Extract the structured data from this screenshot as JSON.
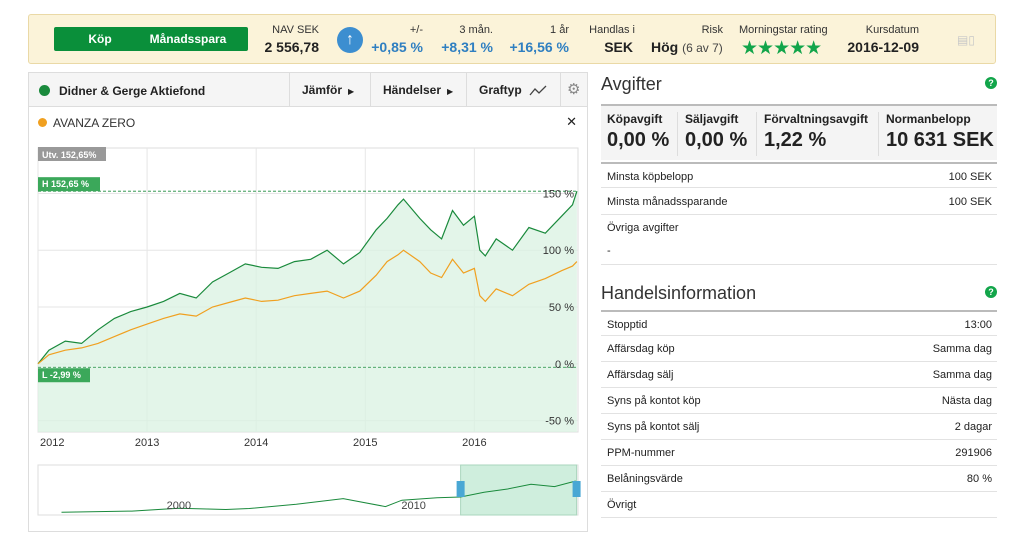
{
  "topbar": {
    "buy_label": "Köp",
    "monthly_label": "Månadsspara",
    "nav_label": "NAV SEK",
    "nav_value": "2 556,78",
    "change_label": "+/-",
    "change_value": "+0,85 %",
    "m3_label": "3 mån.",
    "m3_value": "+8,31 %",
    "y1_label": "1 år",
    "y1_value": "+16,56 %",
    "traded_label": "Handlas i",
    "traded_value": "SEK",
    "risk_label": "Risk",
    "risk_value": "Hög",
    "risk_detail": "(6 av 7)",
    "rating_label": "Morningstar rating",
    "rating_stars": "★★★★★",
    "date_label": "Kursdatum",
    "date_value": "2016-12-09",
    "colors": {
      "accent": "#0a8f3a",
      "blue": "#2f7fc1",
      "background": "#fbf3d9"
    }
  },
  "chart_panel": {
    "fund_name": "Didner & Gerge Aktiefond",
    "compare_label": "Jämför",
    "events_label": "Händelser",
    "charttype_label": "Graftyp",
    "compare_fund": "AVANZA ZERO",
    "utv_label": "Utv. 152,65%",
    "high_label": "H 152,65 %",
    "low_label": "L -2,99 %",
    "colors": {
      "fund": "#1a8a3c",
      "compare": "#f0a020"
    }
  },
  "chart_data": {
    "type": "line",
    "x_ticks": [
      "2012",
      "2013",
      "2014",
      "2015",
      "2016"
    ],
    "y_ticks": [
      "150 %",
      "100 %",
      "50 %",
      "0 %",
      "-50 %"
    ],
    "ylim": [
      -50,
      190
    ],
    "series": [
      {
        "name": "Didner & Gerge Aktiefond",
        "color": "#1a8a3c",
        "x": [
          2012.0,
          2012.1,
          2012.25,
          2012.4,
          2012.55,
          2012.7,
          2012.85,
          2013.0,
          2013.15,
          2013.3,
          2013.45,
          2013.6,
          2013.75,
          2013.9,
          2014.05,
          2014.2,
          2014.35,
          2014.5,
          2014.65,
          2014.8,
          2014.95,
          2015.1,
          2015.2,
          2015.3,
          2015.35,
          2015.5,
          2015.6,
          2015.7,
          2015.8,
          2015.9,
          2016.0,
          2016.05,
          2016.1,
          2016.2,
          2016.35,
          2016.5,
          2016.65,
          2016.8,
          2016.9,
          2016.94
        ],
        "values": [
          0,
          12,
          20,
          18,
          30,
          40,
          46,
          50,
          55,
          62,
          58,
          72,
          80,
          88,
          85,
          84,
          90,
          92,
          100,
          88,
          98,
          118,
          128,
          140,
          145,
          128,
          118,
          110,
          135,
          122,
          130,
          100,
          95,
          110,
          100,
          120,
          115,
          130,
          140,
          152
        ]
      },
      {
        "name": "AVANZA ZERO",
        "color": "#f0a020",
        "x": [
          2012.0,
          2012.1,
          2012.25,
          2012.4,
          2012.55,
          2012.7,
          2012.85,
          2013.0,
          2013.15,
          2013.3,
          2013.45,
          2013.6,
          2013.75,
          2013.9,
          2014.05,
          2014.2,
          2014.35,
          2014.5,
          2014.65,
          2014.8,
          2014.95,
          2015.1,
          2015.2,
          2015.3,
          2015.35,
          2015.5,
          2015.6,
          2015.7,
          2015.8,
          2015.9,
          2016.0,
          2016.05,
          2016.1,
          2016.2,
          2016.35,
          2016.5,
          2016.65,
          2016.8,
          2016.9,
          2016.94
        ],
        "values": [
          0,
          8,
          12,
          14,
          18,
          24,
          30,
          35,
          40,
          44,
          42,
          50,
          54,
          58,
          55,
          56,
          60,
          62,
          64,
          58,
          64,
          78,
          90,
          96,
          100,
          90,
          80,
          76,
          92,
          80,
          84,
          60,
          55,
          66,
          60,
          70,
          75,
          82,
          86,
          90
        ]
      }
    ],
    "navigator": {
      "x_ticks": [
        "2000",
        "2010"
      ],
      "x": [
        1995,
        1998,
        2000,
        2002,
        2003,
        2005,
        2007,
        2008.8,
        2009.5,
        2011,
        2012,
        2013,
        2014,
        2015,
        2016,
        2016.9
      ],
      "values": [
        5,
        12,
        30,
        22,
        28,
        55,
        90,
        40,
        80,
        95,
        100,
        130,
        150,
        180,
        165,
        200
      ],
      "selection": [
        2012,
        2016.94
      ],
      "xlim": [
        1994,
        2017
      ]
    }
  },
  "fees": {
    "title": "Avgifter",
    "items": [
      {
        "label": "Köpavgift",
        "value": "0,00 %"
      },
      {
        "label": "Säljavgift",
        "value": "0,00 %"
      },
      {
        "label": "Förvaltningsavgift",
        "value": "1,22 %"
      },
      {
        "label": "Normanbelopp",
        "value": "10 631 SEK"
      }
    ],
    "rows": [
      {
        "label": "Minsta köpbelopp",
        "value": "100 SEK"
      },
      {
        "label": "Minsta månadssparande",
        "value": "100 SEK"
      },
      {
        "label": "Övriga avgifter",
        "value": ""
      }
    ],
    "other_value": "-"
  },
  "trading": {
    "title": "Handelsinformation",
    "rows": [
      {
        "label": "Stopptid",
        "value": "13:00"
      },
      {
        "label": "Affärsdag köp",
        "value": "Samma dag"
      },
      {
        "label": "Affärsdag sälj",
        "value": "Samma dag"
      },
      {
        "label": "Syns på kontot köp",
        "value": "Nästa dag"
      },
      {
        "label": "Syns på kontot sälj",
        "value": "2 dagar"
      },
      {
        "label": "PPM-nummer",
        "value": "291906"
      },
      {
        "label": "Belåningsvärde",
        "value": "80 %"
      },
      {
        "label": "Övrigt",
        "value": ""
      }
    ]
  }
}
